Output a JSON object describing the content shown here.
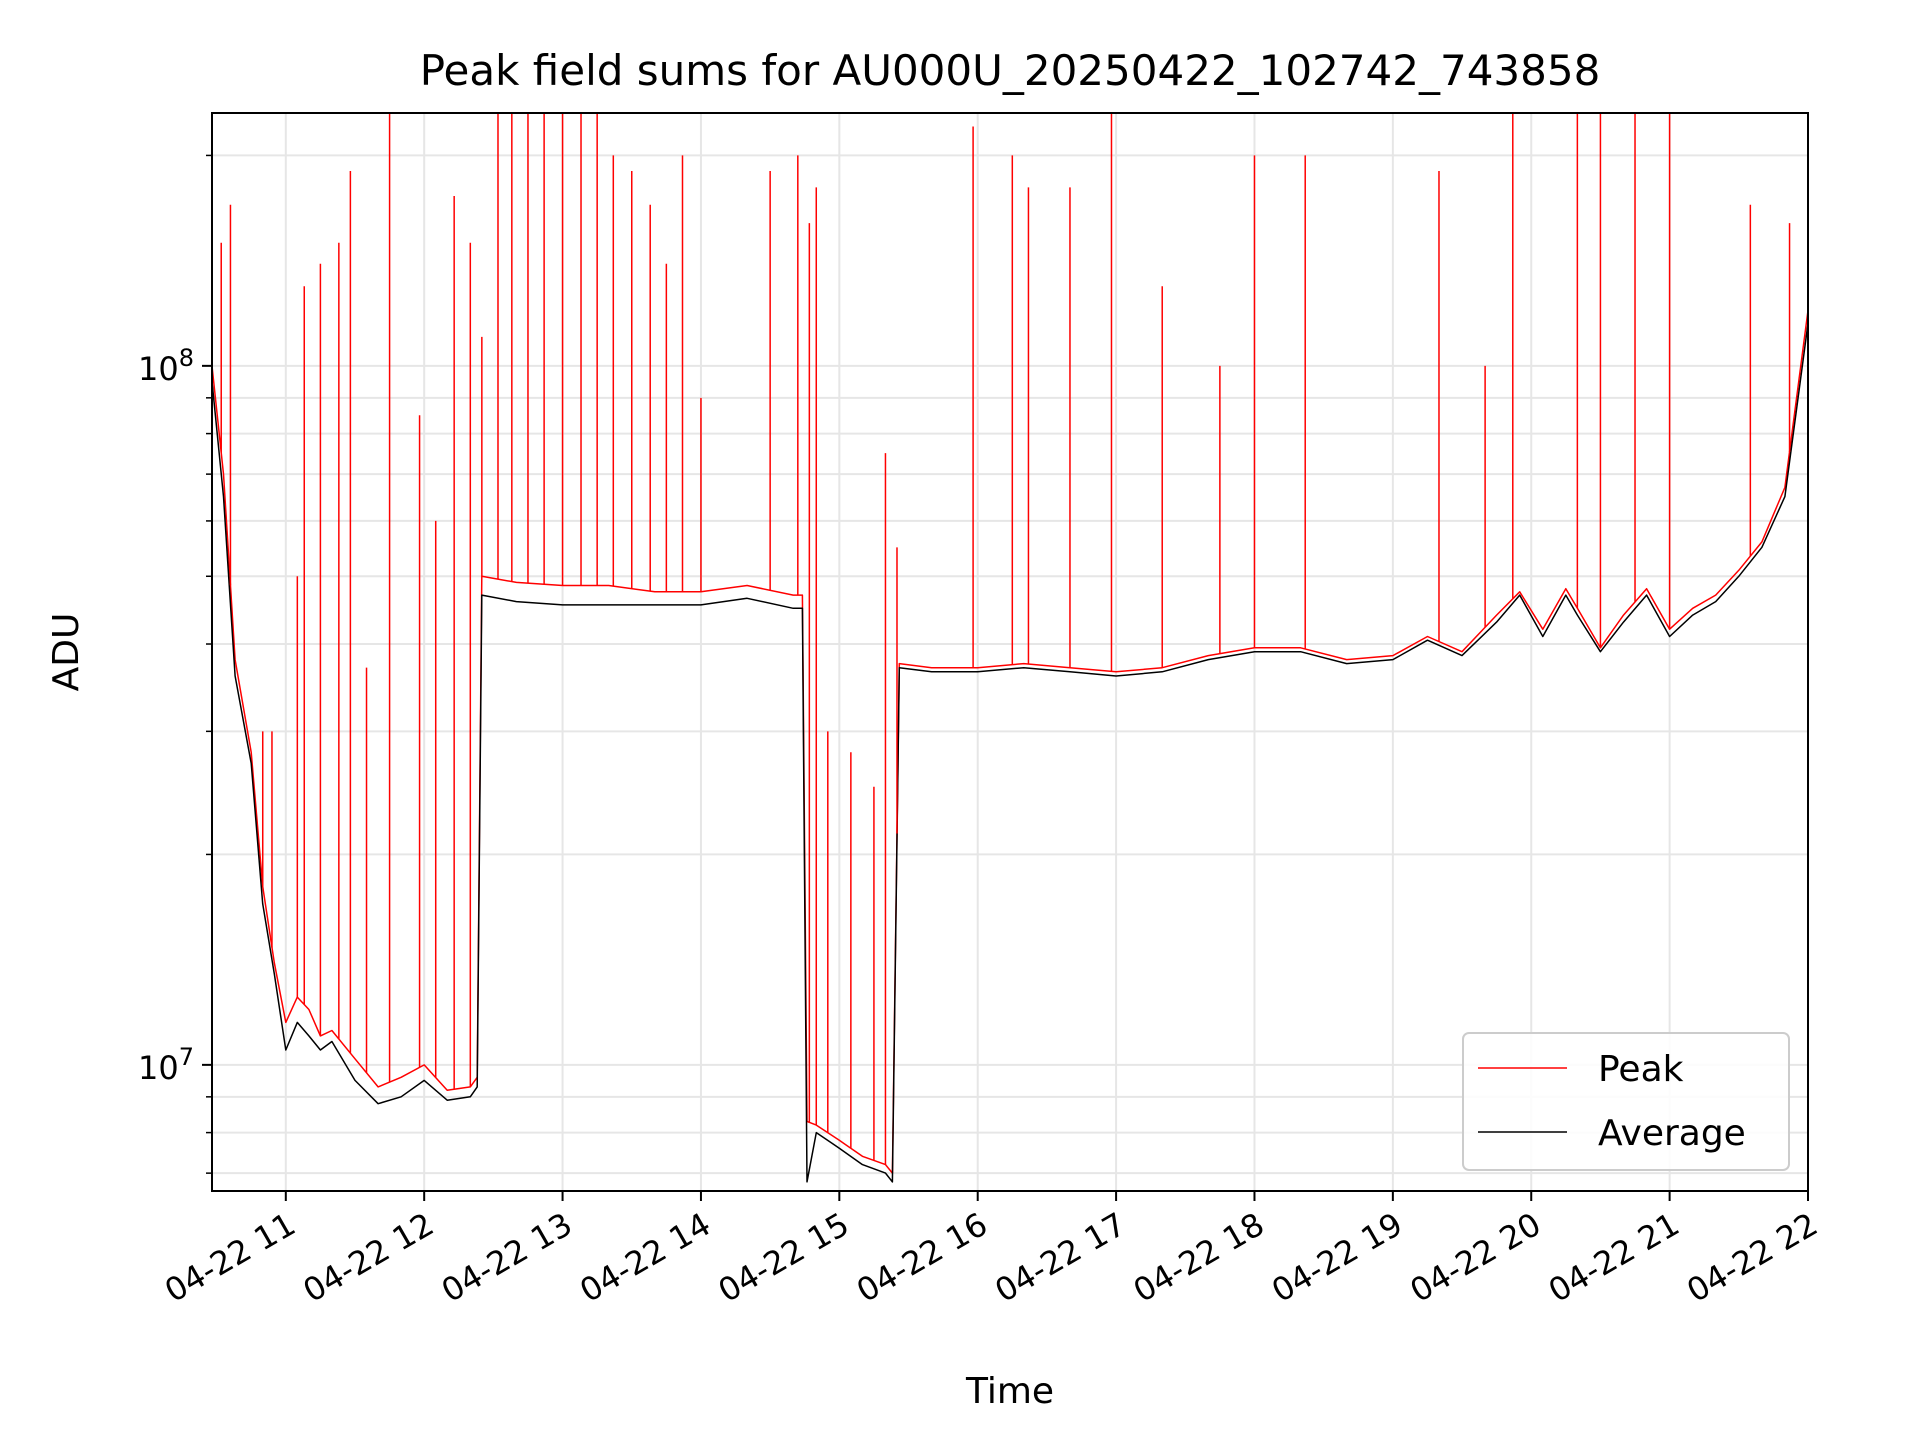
{
  "chart_data": {
    "type": "line",
    "title": "Peak field sums for AU000U_20250422_102742_743858",
    "xlabel": "Time",
    "ylabel": "ADU",
    "yscale": "log",
    "grid": true,
    "legend_position": "lower-right",
    "xlim": [
      "2025-04-22 10:28",
      "2025-04-22 22:00"
    ],
    "ylim": [
      6600000,
      230000000
    ],
    "x_ticks": [
      "04-22 11",
      "04-22 12",
      "04-22 13",
      "04-22 14",
      "04-22 15",
      "04-22 16",
      "04-22 17",
      "04-22 18",
      "04-22 19",
      "04-22 20",
      "04-22 21",
      "04-22 22"
    ],
    "y_ticks": [
      {
        "value": 10000000,
        "base": "10",
        "exp": "7"
      },
      {
        "value": 100000000,
        "base": "10",
        "exp": "8"
      }
    ],
    "colors": {
      "Peak": "#ff0000",
      "Average": "#000000"
    },
    "series": [
      {
        "name": "Peak",
        "x": [
          "2025-04-22 10:28",
          "2025-04-22 10:33",
          "2025-04-22 10:38",
          "2025-04-22 10:45",
          "2025-04-22 10:50",
          "2025-04-22 10:55",
          "2025-04-22 11:00",
          "2025-04-22 11:05",
          "2025-04-22 11:10",
          "2025-04-22 11:15",
          "2025-04-22 11:20",
          "2025-04-22 11:30",
          "2025-04-22 11:40",
          "2025-04-22 11:50",
          "2025-04-22 12:00",
          "2025-04-22 12:10",
          "2025-04-22 12:20",
          "2025-04-22 12:23",
          "2025-04-22 12:25",
          "2025-04-22 12:40",
          "2025-04-22 13:00",
          "2025-04-22 13:20",
          "2025-04-22 13:40",
          "2025-04-22 14:00",
          "2025-04-22 14:20",
          "2025-04-22 14:40",
          "2025-04-22 14:44",
          "2025-04-22 14:46",
          "2025-04-22 14:50",
          "2025-04-22 15:00",
          "2025-04-22 15:10",
          "2025-04-22 15:20",
          "2025-04-22 15:23",
          "2025-04-22 15:26",
          "2025-04-22 15:40",
          "2025-04-22 16:00",
          "2025-04-22 16:20",
          "2025-04-22 16:40",
          "2025-04-22 17:00",
          "2025-04-22 17:20",
          "2025-04-22 17:40",
          "2025-04-22 18:00",
          "2025-04-22 18:20",
          "2025-04-22 18:40",
          "2025-04-22 19:00",
          "2025-04-22 19:15",
          "2025-04-22 19:30",
          "2025-04-22 19:45",
          "2025-04-22 19:55",
          "2025-04-22 20:05",
          "2025-04-22 20:15",
          "2025-04-22 20:20",
          "2025-04-22 20:30",
          "2025-04-22 20:40",
          "2025-04-22 20:50",
          "2025-04-22 21:00",
          "2025-04-22 21:10",
          "2025-04-22 21:20",
          "2025-04-22 21:30",
          "2025-04-22 21:40",
          "2025-04-22 21:50",
          "2025-04-22 22:00"
        ],
        "y": [
          100000000,
          70000000,
          38000000,
          28000000,
          18000000,
          14000000,
          11500000,
          12500000,
          12000000,
          11000000,
          11200000,
          10200000,
          9300000,
          9600000,
          10000000,
          9200000,
          9300000,
          9600000,
          50000000,
          49000000,
          48500000,
          48500000,
          47500000,
          47500000,
          48500000,
          47000000,
          47000000,
          8300000,
          8200000,
          7800000,
          7400000,
          7200000,
          7000000,
          37500000,
          37000000,
          37000000,
          37500000,
          37000000,
          36500000,
          37000000,
          38500000,
          39500000,
          39500000,
          38000000,
          38500000,
          41000000,
          39000000,
          44000000,
          47500000,
          42000000,
          48000000,
          45000000,
          39500000,
          44000000,
          48000000,
          42000000,
          45000000,
          47000000,
          51000000,
          56000000,
          67000000,
          120000000
        ],
        "spikes": [
          {
            "x": "2025-04-22 10:32",
            "y": 150000000
          },
          {
            "x": "2025-04-22 10:36",
            "y": 170000000
          },
          {
            "x": "2025-04-22 10:50",
            "y": 30000000
          },
          {
            "x": "2025-04-22 10:54",
            "y": 30000000
          },
          {
            "x": "2025-04-22 11:05",
            "y": 50000000
          },
          {
            "x": "2025-04-22 11:08",
            "y": 130000000
          },
          {
            "x": "2025-04-22 11:15",
            "y": 140000000
          },
          {
            "x": "2025-04-22 11:23",
            "y": 150000000
          },
          {
            "x": "2025-04-22 11:28",
            "y": 190000000
          },
          {
            "x": "2025-04-22 11:35",
            "y": 37000000
          },
          {
            "x": "2025-04-22 11:45",
            "y": 230000000
          },
          {
            "x": "2025-04-22 11:58",
            "y": 85000000
          },
          {
            "x": "2025-04-22 12:05",
            "y": 60000000
          },
          {
            "x": "2025-04-22 12:13",
            "y": 175000000
          },
          {
            "x": "2025-04-22 12:20",
            "y": 150000000
          },
          {
            "x": "2025-04-22 12:25",
            "y": 110000000
          },
          {
            "x": "2025-04-22 12:32",
            "y": 230000000
          },
          {
            "x": "2025-04-22 12:38",
            "y": 230000000
          },
          {
            "x": "2025-04-22 12:45",
            "y": 230000000
          },
          {
            "x": "2025-04-22 12:52",
            "y": 230000000
          },
          {
            "x": "2025-04-22 13:00",
            "y": 230000000
          },
          {
            "x": "2025-04-22 13:08",
            "y": 230000000
          },
          {
            "x": "2025-04-22 13:15",
            "y": 230000000
          },
          {
            "x": "2025-04-22 13:22",
            "y": 200000000
          },
          {
            "x": "2025-04-22 13:30",
            "y": 190000000
          },
          {
            "x": "2025-04-22 13:38",
            "y": 170000000
          },
          {
            "x": "2025-04-22 13:45",
            "y": 140000000
          },
          {
            "x": "2025-04-22 13:52",
            "y": 200000000
          },
          {
            "x": "2025-04-22 14:00",
            "y": 90000000
          },
          {
            "x": "2025-04-22 14:30",
            "y": 190000000
          },
          {
            "x": "2025-04-22 14:42",
            "y": 200000000
          },
          {
            "x": "2025-04-22 14:47",
            "y": 160000000
          },
          {
            "x": "2025-04-22 14:50",
            "y": 180000000
          },
          {
            "x": "2025-04-22 14:55",
            "y": 30000000
          },
          {
            "x": "2025-04-22 15:05",
            "y": 28000000
          },
          {
            "x": "2025-04-22 15:15",
            "y": 25000000
          },
          {
            "x": "2025-04-22 15:20",
            "y": 75000000
          },
          {
            "x": "2025-04-22 15:25",
            "y": 55000000
          },
          {
            "x": "2025-04-22 15:58",
            "y": 220000000
          },
          {
            "x": "2025-04-22 16:15",
            "y": 200000000
          },
          {
            "x": "2025-04-22 16:22",
            "y": 180000000
          },
          {
            "x": "2025-04-22 16:40",
            "y": 180000000
          },
          {
            "x": "2025-04-22 16:58",
            "y": 230000000
          },
          {
            "x": "2025-04-22 17:20",
            "y": 130000000
          },
          {
            "x": "2025-04-22 17:45",
            "y": 100000000
          },
          {
            "x": "2025-04-22 18:00",
            "y": 200000000
          },
          {
            "x": "2025-04-22 18:22",
            "y": 200000000
          },
          {
            "x": "2025-04-22 19:20",
            "y": 190000000
          },
          {
            "x": "2025-04-22 19:40",
            "y": 100000000
          },
          {
            "x": "2025-04-22 19:52",
            "y": 230000000
          },
          {
            "x": "2025-04-22 20:20",
            "y": 230000000
          },
          {
            "x": "2025-04-22 20:30",
            "y": 230000000
          },
          {
            "x": "2025-04-22 20:45",
            "y": 230000000
          },
          {
            "x": "2025-04-22 21:00",
            "y": 230000000
          },
          {
            "x": "2025-04-22 21:35",
            "y": 170000000
          },
          {
            "x": "2025-04-22 21:52",
            "y": 160000000
          }
        ]
      },
      {
        "name": "Average",
        "x": [
          "2025-04-22 10:28",
          "2025-04-22 10:33",
          "2025-04-22 10:38",
          "2025-04-22 10:45",
          "2025-04-22 10:50",
          "2025-04-22 10:55",
          "2025-04-22 11:00",
          "2025-04-22 11:05",
          "2025-04-22 11:10",
          "2025-04-22 11:15",
          "2025-04-22 11:20",
          "2025-04-22 11:30",
          "2025-04-22 11:40",
          "2025-04-22 11:50",
          "2025-04-22 12:00",
          "2025-04-22 12:10",
          "2025-04-22 12:20",
          "2025-04-22 12:23",
          "2025-04-22 12:25",
          "2025-04-22 12:40",
          "2025-04-22 13:00",
          "2025-04-22 13:20",
          "2025-04-22 13:40",
          "2025-04-22 14:00",
          "2025-04-22 14:20",
          "2025-04-22 14:40",
          "2025-04-22 14:44",
          "2025-04-22 14:46",
          "2025-04-22 14:50",
          "2025-04-22 15:00",
          "2025-04-22 15:10",
          "2025-04-22 15:20",
          "2025-04-22 15:23",
          "2025-04-22 15:26",
          "2025-04-22 15:40",
          "2025-04-22 16:00",
          "2025-04-22 16:20",
          "2025-04-22 16:40",
          "2025-04-22 17:00",
          "2025-04-22 17:20",
          "2025-04-22 17:40",
          "2025-04-22 18:00",
          "2025-04-22 18:20",
          "2025-04-22 18:40",
          "2025-04-22 19:00",
          "2025-04-22 19:15",
          "2025-04-22 19:30",
          "2025-04-22 19:45",
          "2025-04-22 19:55",
          "2025-04-22 20:05",
          "2025-04-22 20:15",
          "2025-04-22 20:20",
          "2025-04-22 20:30",
          "2025-04-22 20:40",
          "2025-04-22 20:50",
          "2025-04-22 21:00",
          "2025-04-22 21:10",
          "2025-04-22 21:20",
          "2025-04-22 21:30",
          "2025-04-22 21:40",
          "2025-04-22 21:50",
          "2025-04-22 22:00"
        ],
        "y": [
          95000000,
          65000000,
          36000000,
          27000000,
          17000000,
          13500000,
          10500000,
          11500000,
          11000000,
          10500000,
          10800000,
          9500000,
          8800000,
          9000000,
          9500000,
          8900000,
          9000000,
          9300000,
          47000000,
          46000000,
          45500000,
          45500000,
          45500000,
          45500000,
          46500000,
          45000000,
          45000000,
          6800000,
          8000000,
          7600000,
          7200000,
          7000000,
          6800000,
          37000000,
          36500000,
          36500000,
          37000000,
          36500000,
          36000000,
          36500000,
          38000000,
          39000000,
          39000000,
          37500000,
          38000000,
          40500000,
          38500000,
          43000000,
          47000000,
          41000000,
          47000000,
          44000000,
          39000000,
          43000000,
          47000000,
          41000000,
          44000000,
          46000000,
          50000000,
          55000000,
          65000000,
          115000000
        ]
      }
    ]
  }
}
